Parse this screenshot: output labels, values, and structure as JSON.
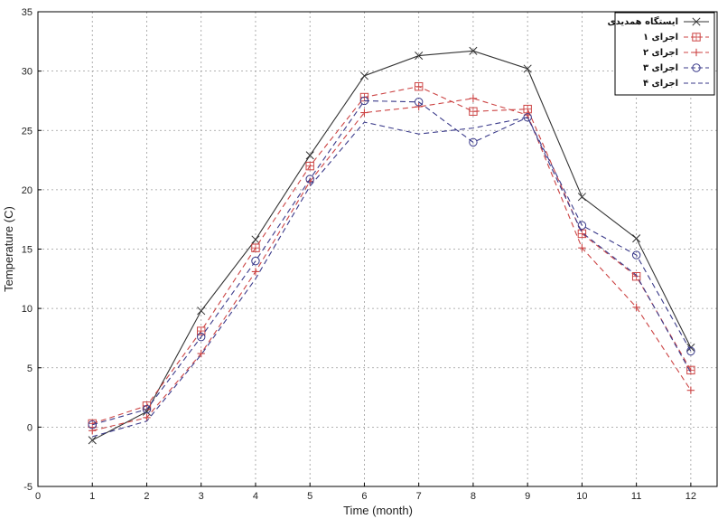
{
  "chart_data": {
    "type": "line",
    "title": "",
    "xlabel": "Time (month)",
    "ylabel": "Temperature (C)",
    "xlim": [
      0,
      12.5
    ],
    "ylim": [
      -5,
      35
    ],
    "xticks": [
      0,
      1,
      2,
      3,
      4,
      5,
      6,
      7,
      8,
      9,
      10,
      11,
      12
    ],
    "yticks": [
      -5,
      0,
      5,
      10,
      15,
      20,
      25,
      30,
      35
    ],
    "grid": true,
    "legend_position": "top-right",
    "x": [
      1,
      2,
      3,
      4,
      5,
      6,
      7,
      8,
      9,
      10,
      11,
      12
    ],
    "series": [
      {
        "name": "ایستگاه همدیدی",
        "color": "#333333",
        "dash": "solid",
        "marker": "x",
        "values": [
          -1.1,
          1.3,
          9.8,
          15.8,
          22.9,
          29.6,
          31.3,
          31.7,
          30.2,
          19.4,
          15.9,
          6.7
        ]
      },
      {
        "name": "اجرای ۱",
        "color": "#cc4444",
        "dash": "dashed",
        "marker": "square-plus",
        "values": [
          0.3,
          1.8,
          8.1,
          15.1,
          22.0,
          27.8,
          28.7,
          26.6,
          26.8,
          16.3,
          12.7,
          4.8
        ]
      },
      {
        "name": "اجرای ۲",
        "color": "#cc4444",
        "dash": "dashed",
        "marker": "plus",
        "values": [
          -0.3,
          0.8,
          6.2,
          13.1,
          20.7,
          26.5,
          27.0,
          27.7,
          26.3,
          15.1,
          10.1,
          3.1
        ]
      },
      {
        "name": "اجرای ۳",
        "color": "#3a3a8a",
        "dash": "dashed",
        "marker": "circle",
        "values": [
          0.2,
          1.5,
          7.6,
          14.0,
          20.9,
          27.5,
          27.4,
          24.0,
          26.1,
          17.0,
          14.5,
          6.4
        ]
      },
      {
        "name": "اجرای ۴",
        "color": "#3a3a8a",
        "dash": "dashed",
        "marker": "none",
        "values": [
          -0.8,
          0.5,
          6.1,
          12.5,
          20.3,
          25.7,
          24.7,
          25.2,
          26.1,
          16.4,
          12.8,
          4.6
        ]
      }
    ]
  }
}
